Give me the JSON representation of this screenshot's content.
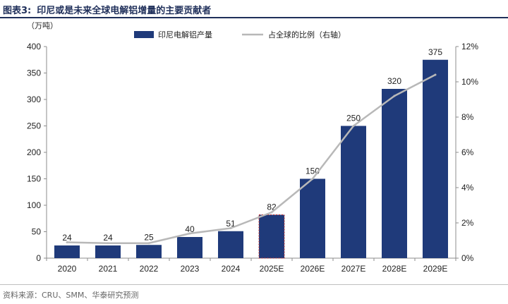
{
  "figure": {
    "label": "图表3:",
    "title": "印尼或是未来全球电解铝增量的主要贡献者",
    "source": "资料来源：CRU、SMM、华泰研究预测"
  },
  "colors": {
    "bar": "#1f3a7a",
    "line": "#b8b8b8",
    "axis": "#8c8c8c"
  },
  "chart_data": {
    "type": "bar",
    "categories": [
      "2020",
      "2021",
      "2022",
      "2023",
      "2024",
      "2025E",
      "2026E",
      "2027E",
      "2028E",
      "2029E"
    ],
    "series": [
      {
        "name": "印尼电解铝产量",
        "type": "bar",
        "axis": "left",
        "values": [
          24,
          24,
          25,
          40,
          51,
          82,
          150,
          250,
          320,
          375
        ]
      },
      {
        "name": "占全球的比例（右轴）",
        "type": "line",
        "axis": "right",
        "values": [
          0.9,
          0.85,
          0.85,
          1.4,
          1.7,
          2.6,
          4.5,
          7.5,
          9.2,
          10.4
        ]
      }
    ],
    "highlighted_category": "2025E",
    "ylabel": "（万吨）",
    "ylim": [
      0,
      400
    ],
    "yticks": [
      "0",
      "50",
      "100",
      "150",
      "200",
      "250",
      "300",
      "350",
      "400"
    ],
    "y2lim": [
      0,
      12
    ],
    "y2ticks": [
      "0%",
      "2%",
      "4%",
      "6%",
      "8%",
      "10%",
      "12%"
    ],
    "legend_position": "top",
    "grid": false
  }
}
